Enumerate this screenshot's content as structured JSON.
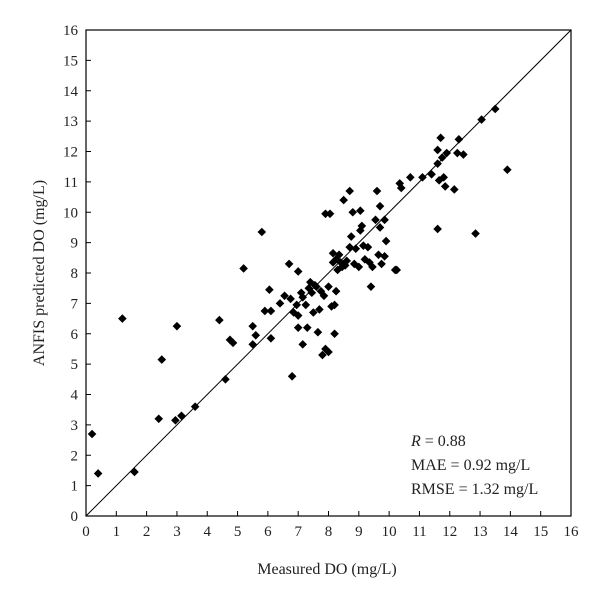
{
  "chart_data": {
    "type": "scatter",
    "xlabel": "Measured DO (mg/L)",
    "ylabel": "ANFIS predicted DO (mg/L)",
    "xlim": [
      0,
      16
    ],
    "ylim": [
      0,
      16
    ],
    "xticks": [
      "0",
      "1",
      "2",
      "3",
      "4",
      "5",
      "6",
      "7",
      "8",
      "9",
      "10",
      "11",
      "12",
      "13",
      "14",
      "15",
      "16"
    ],
    "yticks": [
      "0",
      "1",
      "2",
      "3",
      "4",
      "5",
      "6",
      "7",
      "8",
      "9",
      "10",
      "11",
      "12",
      "13",
      "14",
      "15",
      "16"
    ],
    "grid": false,
    "reference_line": {
      "from": [
        0,
        0
      ],
      "to": [
        16,
        16
      ]
    },
    "marker": "diamond",
    "marker_color": "#000000",
    "stats": {
      "r_symbol": "R",
      "r_value": " = 0.88",
      "mae": "MAE = 0.92 mg/L",
      "rmse": "RMSE = 1.32 mg/L"
    },
    "points": [
      [
        0.2,
        2.7
      ],
      [
        0.4,
        1.4
      ],
      [
        1.2,
        6.5
      ],
      [
        1.6,
        1.45
      ],
      [
        2.4,
        3.2
      ],
      [
        2.5,
        5.15
      ],
      [
        2.95,
        3.15
      ],
      [
        3.0,
        6.25
      ],
      [
        3.15,
        3.3
      ],
      [
        3.6,
        3.6
      ],
      [
        4.4,
        6.45
      ],
      [
        4.6,
        4.5
      ],
      [
        4.75,
        5.8
      ],
      [
        4.85,
        5.7
      ],
      [
        5.2,
        8.15
      ],
      [
        5.5,
        5.65
      ],
      [
        5.5,
        6.25
      ],
      [
        5.6,
        5.95
      ],
      [
        5.8,
        9.35
      ],
      [
        5.9,
        6.75
      ],
      [
        6.05,
        7.45
      ],
      [
        6.1,
        6.75
      ],
      [
        6.1,
        5.85
      ],
      [
        6.4,
        7.0
      ],
      [
        6.55,
        7.25
      ],
      [
        6.7,
        8.3
      ],
      [
        6.75,
        7.15
      ],
      [
        6.8,
        4.6
      ],
      [
        6.85,
        6.7
      ],
      [
        6.95,
        6.95
      ],
      [
        7.0,
        8.05
      ],
      [
        7.0,
        6.6
      ],
      [
        7.0,
        6.2
      ],
      [
        7.1,
        7.35
      ],
      [
        7.15,
        7.2
      ],
      [
        7.15,
        5.65
      ],
      [
        7.25,
        6.95
      ],
      [
        7.3,
        6.2
      ],
      [
        7.35,
        7.5
      ],
      [
        7.4,
        7.7
      ],
      [
        7.45,
        7.35
      ],
      [
        7.5,
        6.7
      ],
      [
        7.55,
        7.6
      ],
      [
        7.6,
        7.55
      ],
      [
        7.65,
        6.05
      ],
      [
        7.7,
        6.8
      ],
      [
        7.75,
        7.4
      ],
      [
        7.8,
        5.3
      ],
      [
        7.85,
        7.25
      ],
      [
        7.9,
        5.5
      ],
      [
        7.9,
        9.95
      ],
      [
        8.0,
        5.4
      ],
      [
        8.0,
        7.55
      ],
      [
        8.05,
        9.95
      ],
      [
        8.1,
        6.9
      ],
      [
        8.15,
        8.65
      ],
      [
        8.15,
        8.35
      ],
      [
        8.2,
        6.95
      ],
      [
        8.2,
        6.0
      ],
      [
        8.25,
        7.4
      ],
      [
        8.25,
        8.45
      ],
      [
        8.3,
        8.1
      ],
      [
        8.35,
        8.6
      ],
      [
        8.4,
        8.35
      ],
      [
        8.45,
        8.2
      ],
      [
        8.5,
        10.4
      ],
      [
        8.55,
        8.25
      ],
      [
        8.6,
        8.4
      ],
      [
        8.7,
        10.7
      ],
      [
        8.7,
        8.85
      ],
      [
        8.75,
        9.2
      ],
      [
        8.8,
        10.0
      ],
      [
        8.85,
        8.3
      ],
      [
        8.9,
        8.8
      ],
      [
        9.0,
        8.2
      ],
      [
        9.05,
        9.4
      ],
      [
        9.05,
        10.05
      ],
      [
        9.1,
        9.55
      ],
      [
        9.15,
        8.9
      ],
      [
        9.2,
        8.45
      ],
      [
        9.3,
        8.85
      ],
      [
        9.35,
        8.35
      ],
      [
        9.4,
        7.55
      ],
      [
        9.45,
        8.2
      ],
      [
        9.55,
        9.75
      ],
      [
        9.6,
        10.7
      ],
      [
        9.65,
        8.6
      ],
      [
        9.7,
        9.5
      ],
      [
        9.7,
        10.2
      ],
      [
        9.75,
        8.3
      ],
      [
        9.85,
        9.75
      ],
      [
        9.85,
        8.55
      ],
      [
        9.9,
        9.05
      ],
      [
        10.2,
        8.1
      ],
      [
        10.25,
        8.1
      ],
      [
        10.35,
        10.95
      ],
      [
        10.4,
        10.8
      ],
      [
        10.7,
        11.15
      ],
      [
        11.1,
        11.15
      ],
      [
        11.4,
        11.25
      ],
      [
        11.6,
        11.6
      ],
      [
        11.6,
        12.05
      ],
      [
        11.6,
        9.45
      ],
      [
        11.65,
        11.05
      ],
      [
        11.7,
        12.45
      ],
      [
        11.75,
        11.8
      ],
      [
        11.8,
        11.15
      ],
      [
        11.85,
        10.85
      ],
      [
        11.9,
        11.95
      ],
      [
        12.15,
        10.75
      ],
      [
        12.25,
        11.95
      ],
      [
        12.3,
        12.4
      ],
      [
        12.45,
        11.9
      ],
      [
        12.85,
        9.3
      ],
      [
        13.05,
        13.05
      ],
      [
        13.5,
        13.4
      ],
      [
        13.9,
        11.4
      ]
    ]
  }
}
